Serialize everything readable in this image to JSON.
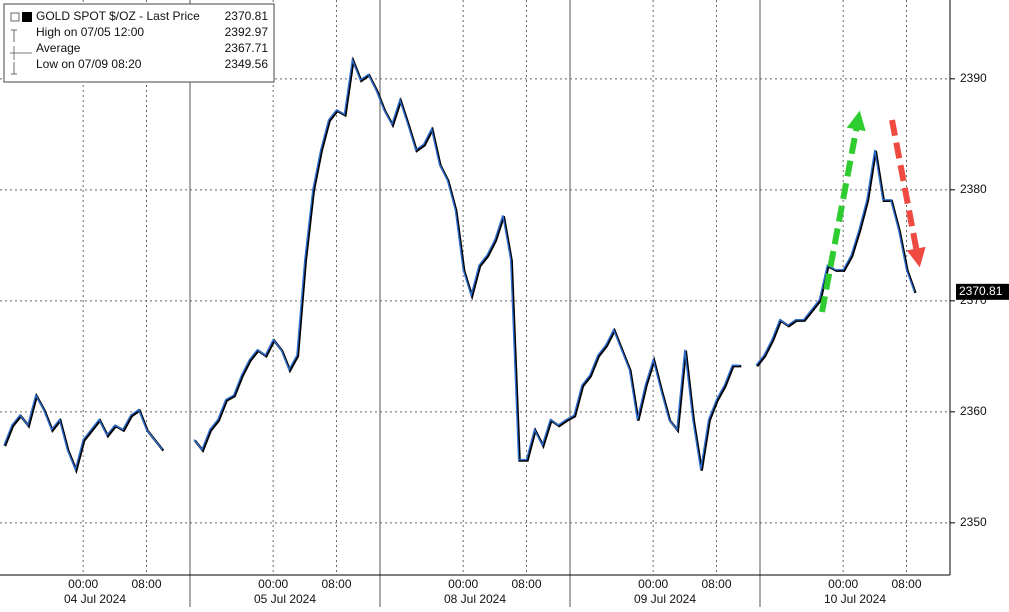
{
  "chart_data": {
    "type": "line",
    "legend": [
      {
        "label": "GOLD SPOT $/OZ - Last Price",
        "value": 2370.81
      },
      {
        "label": "High on 07/05 12:00",
        "value": 2392.97
      },
      {
        "label": "Average",
        "value": 2367.71
      },
      {
        "label": "Low on 07/09 08:20",
        "value": 2349.56
      }
    ],
    "days": [
      {
        "date": "04 Jul 2024",
        "times": [
          null,
          null,
          null,
          null,
          null,
          null,
          null,
          null,
          null,
          null,
          "00:00",
          null,
          null,
          null,
          null,
          null,
          null,
          null,
          "08:00",
          null,
          null,
          null,
          null,
          null
        ],
        "values": [
          2357.0,
          2358.8,
          2359.7,
          2358.8,
          2361.5,
          2360.2,
          2358.4,
          2359.3,
          2356.6,
          2354.8,
          2357.5,
          2358.4,
          2359.3,
          2357.9,
          2358.8,
          2358.4,
          2359.7,
          2360.2,
          2358.4,
          2357.5,
          2356.6,
          null,
          null,
          null
        ]
      },
      {
        "date": "05 Jul 2024",
        "times": [
          null,
          null,
          null,
          null,
          null,
          null,
          null,
          null,
          null,
          null,
          "00:00",
          null,
          null,
          null,
          null,
          null,
          null,
          null,
          "08:00",
          null,
          null,
          null,
          null,
          null
        ],
        "values": [
          2357.5,
          2356.6,
          2358.4,
          2359.3,
          2361.1,
          2361.5,
          2363.3,
          2364.7,
          2365.6,
          2365.1,
          2366.5,
          2365.6,
          2363.8,
          2365.1,
          2373.7,
          2380.0,
          2383.6,
          2386.3,
          2387.2,
          2386.8,
          2391.7,
          2389.9,
          2390.4,
          2389.0
        ]
      },
      {
        "date": "08 Jul 2024",
        "times": [
          null,
          null,
          null,
          null,
          null,
          null,
          null,
          null,
          null,
          null,
          "00:00",
          null,
          null,
          null,
          null,
          null,
          null,
          null,
          "08:00",
          null,
          null,
          null,
          null,
          null
        ],
        "values": [
          2387.2,
          2385.9,
          2388.1,
          2385.9,
          2383.6,
          2384.1,
          2385.5,
          2382.3,
          2380.9,
          2378.2,
          2372.8,
          2370.5,
          2373.2,
          2374.1,
          2375.5,
          2377.7,
          2373.7,
          2355.7,
          2355.7,
          2358.4,
          2357.0,
          2359.3,
          2358.8,
          2359.3
        ]
      },
      {
        "date": "09 Jul 2024",
        "times": [
          null,
          null,
          null,
          null,
          null,
          null,
          null,
          null,
          null,
          null,
          "00:00",
          null,
          null,
          null,
          null,
          null,
          null,
          null,
          "08:00",
          null,
          null,
          null,
          null,
          null
        ],
        "values": [
          2359.7,
          2362.4,
          2363.3,
          2365.1,
          2366.0,
          2367.4,
          2365.6,
          2363.8,
          2359.3,
          2362.4,
          2364.7,
          2361.9,
          2359.3,
          2358.4,
          2365.6,
          2359.3,
          2354.8,
          2359.3,
          2361.1,
          2362.4,
          2364.2,
          2364.2,
          null,
          2364.2
        ]
      },
      {
        "date": "10 Jul 2024",
        "times": [
          null,
          null,
          null,
          null,
          null,
          null,
          null,
          null,
          null,
          null,
          "00:00",
          null,
          null,
          null,
          null,
          null,
          null,
          null,
          "08:00",
          null,
          null,
          null,
          null,
          null
        ],
        "values": [
          2365.1,
          2366.5,
          2368.3,
          2367.8,
          2368.3,
          2368.3,
          2369.2,
          2370.1,
          2373.2,
          2372.8,
          2372.8,
          2374.1,
          2376.4,
          2379.1,
          2383.6,
          2379.1,
          2379.1,
          2376.4,
          2372.8,
          2370.81,
          null,
          null,
          null,
          null
        ]
      }
    ],
    "color": "#2f6fd0",
    "ylim": [
      2345.3,
      2397.1
    ],
    "yticks": [
      2350,
      2360,
      2370,
      2380,
      2390
    ],
    "last_price": 2370.81,
    "grid": true
  }
}
